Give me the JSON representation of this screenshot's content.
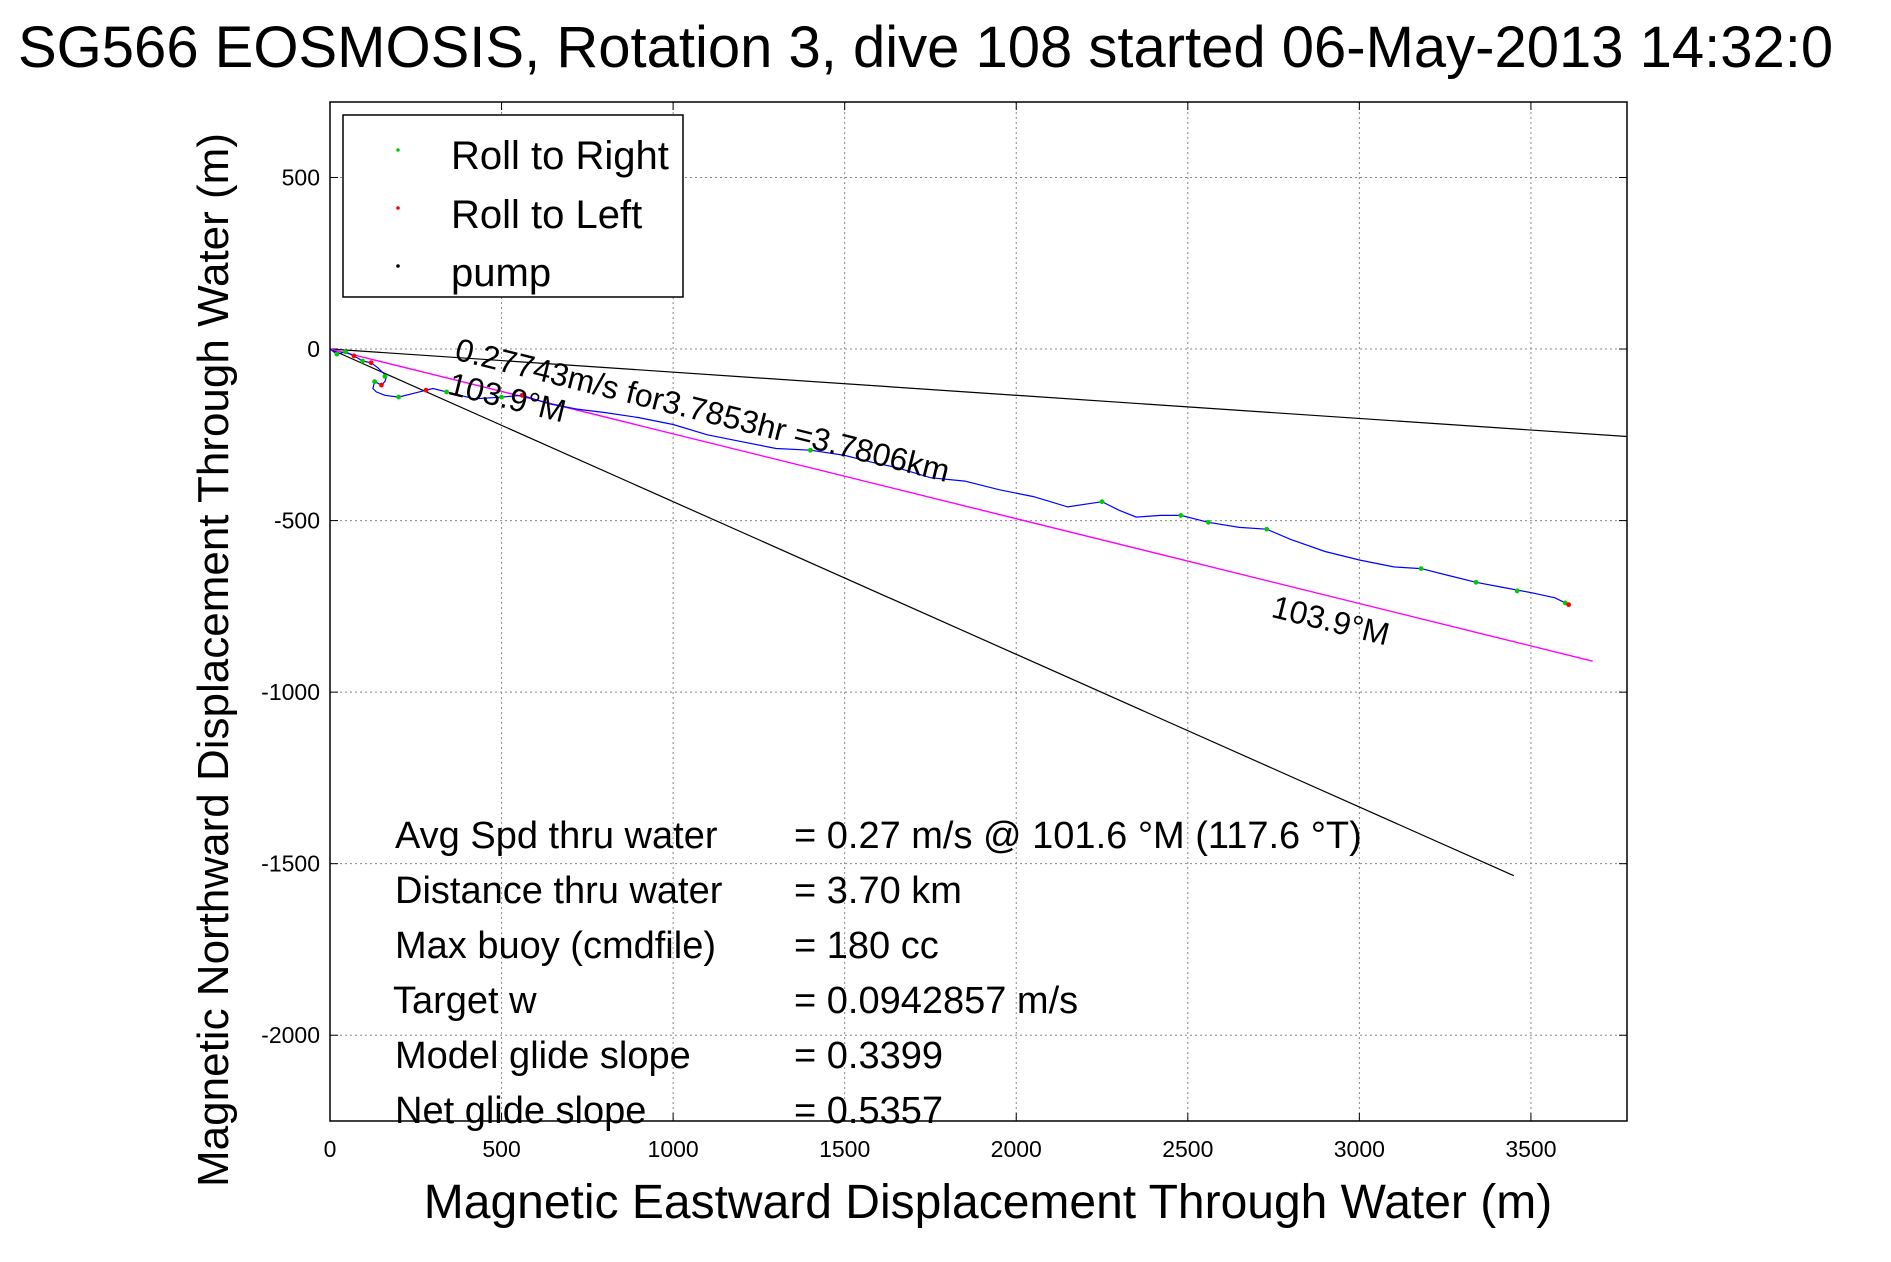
{
  "chart_data": {
    "type": "line",
    "title": "SG566 EOSMOSIS, Rotation 3, dive 108 started 06-May-2013 14:32:0",
    "xlabel": "Magnetic Eastward Displacement Through Water (m)",
    "ylabel": "Magnetic Northward Displacement Through Water (m)",
    "xlim": [
      0,
      3780
    ],
    "ylim": [
      -2250,
      720
    ],
    "xticks": [
      0,
      500,
      1000,
      1500,
      2000,
      2500,
      3000,
      3500
    ],
    "yticks": [
      500,
      0,
      -500,
      -1000,
      -1500,
      -2000
    ],
    "grid": true,
    "legend_position": "top-left",
    "legend": [
      {
        "label": "Roll to Right",
        "color": "#00cc00"
      },
      {
        "label": "Roll to Left",
        "color": "#ff0000"
      },
      {
        "label": "pump",
        "color": "#000000"
      }
    ],
    "colors": {
      "track": "#0000ff",
      "heading": "#ff00ff",
      "envelope": "#000000"
    },
    "track": {
      "x": [
        0,
        20,
        45,
        70,
        95,
        120,
        140,
        155,
        165,
        160,
        150,
        140,
        130,
        125,
        135,
        160,
        200,
        260,
        300,
        340,
        420,
        500,
        560,
        640,
        720,
        800,
        900,
        1000,
        1100,
        1200,
        1300,
        1400,
        1500,
        1580,
        1650,
        1750,
        1850,
        1950,
        2050,
        2150,
        2250,
        2300,
        2350,
        2420,
        2480,
        2560,
        2650,
        2730,
        2800,
        2900,
        3000,
        3100,
        3180,
        3260,
        3340,
        3420,
        3500,
        3570,
        3610
      ],
      "y": [
        0,
        -15,
        -8,
        -20,
        -35,
        -40,
        -55,
        -70,
        -80,
        -95,
        -105,
        -100,
        -95,
        -115,
        -125,
        -135,
        -140,
        -125,
        -115,
        -125,
        -145,
        -140,
        -135,
        -160,
        -175,
        -185,
        -200,
        -220,
        -250,
        -270,
        -290,
        -295,
        -310,
        -330,
        -345,
        -375,
        -385,
        -410,
        -430,
        -460,
        -445,
        -470,
        -490,
        -485,
        -485,
        -505,
        -520,
        -525,
        -555,
        -590,
        -615,
        -635,
        -640,
        -660,
        -680,
        -695,
        -710,
        -725,
        -745
      ]
    },
    "roll_right_points": {
      "x": [
        20,
        45,
        95,
        130,
        160,
        200,
        340,
        500,
        1400,
        2250,
        2480,
        2560,
        2730,
        3180,
        3340,
        3460,
        3600
      ],
      "y": [
        -15,
        -8,
        -35,
        -95,
        -80,
        -140,
        -125,
        -140,
        -295,
        -445,
        -485,
        -505,
        -525,
        -640,
        -680,
        -705,
        -740
      ]
    },
    "roll_left_points": {
      "x": [
        70,
        120,
        150,
        280,
        560,
        3610
      ],
      "y": [
        -20,
        -40,
        -105,
        -120,
        -135,
        -745
      ]
    },
    "heading_line": {
      "x": [
        0,
        3680
      ],
      "y": [
        0,
        -910
      ]
    },
    "envelope_lines": [
      {
        "x": [
          0,
          3780
        ],
        "y": [
          0,
          -255
        ]
      },
      {
        "x": [
          0,
          3450
        ],
        "y": [
          0,
          -1535
        ]
      }
    ],
    "annotations": [
      {
        "text": "0.27743m/s for3.7853hr =3.7806km",
        "x": 360,
        "y": -30,
        "angle": 14
      },
      {
        "text": "103.9°M",
        "x": 340,
        "y": -130,
        "angle": 14
      },
      {
        "text": "103.9°M",
        "x": 2740,
        "y": -780,
        "angle": 14
      }
    ],
    "stats": [
      {
        "label": "Avg Spd thru water",
        "value": "=  0.27 m/s @ 101.6 °M (117.6 °T)"
      },
      {
        "label": "Distance thru water",
        "value": "=  3.70 km"
      },
      {
        "label": "Max buoy (cmdfile)",
        "value": "= 180 cc"
      },
      {
        "label": "Target w",
        "value": "= 0.0942857 m/s"
      },
      {
        "label": "Model glide slope",
        "value": "= 0.3399"
      },
      {
        "label": "Net glide slope",
        "value": "= 0.5357"
      }
    ]
  }
}
